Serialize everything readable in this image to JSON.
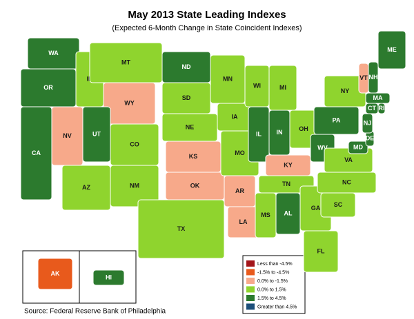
{
  "header": {
    "title": "May 2013 State Leading Indexes",
    "subtitle": "(Expected 6-Month Change in State Coincident Indexes)"
  },
  "legend": [
    {
      "label": "Less than -4.5%",
      "color": "#a3151a"
    },
    {
      "label": "-1.5% to -4.5%",
      "color": "#e85a1c"
    },
    {
      "label": "0.0% to -1.5%",
      "color": "#f7a98a"
    },
    {
      "label": "0.0% to  1.5%",
      "color": "#8fd42e"
    },
    {
      "label": "1.5% to  4.5%",
      "color": "#2c7a2e"
    },
    {
      "label": "Greater than 4.5%",
      "color": "#1d4f7a"
    }
  ],
  "states": [
    {
      "label": "WA",
      "class": 4
    },
    {
      "label": "OR",
      "class": 4
    },
    {
      "label": "CA",
      "class": 4
    },
    {
      "label": "NV",
      "class": 2
    },
    {
      "label": "ID",
      "class": 3
    },
    {
      "label": "MT",
      "class": 3
    },
    {
      "label": "WY",
      "class": 2
    },
    {
      "label": "UT",
      "class": 4
    },
    {
      "label": "CO",
      "class": 3
    },
    {
      "label": "AZ",
      "class": 3
    },
    {
      "label": "NM",
      "class": 3
    },
    {
      "label": "ND",
      "class": 4
    },
    {
      "label": "SD",
      "class": 3
    },
    {
      "label": "NE",
      "class": 3
    },
    {
      "label": "KS",
      "class": 2
    },
    {
      "label": "OK",
      "class": 2
    },
    {
      "label": "TX",
      "class": 3
    },
    {
      "label": "MN",
      "class": 3
    },
    {
      "label": "IA",
      "class": 3
    },
    {
      "label": "MO",
      "class": 3
    },
    {
      "label": "AR",
      "class": 2
    },
    {
      "label": "LA",
      "class": 2
    },
    {
      "label": "WI",
      "class": 3
    },
    {
      "label": "IL",
      "class": 4
    },
    {
      "label": "MI",
      "class": 3
    },
    {
      "label": "IN",
      "class": 4
    },
    {
      "label": "KY",
      "class": 2
    },
    {
      "label": "TN",
      "class": 3
    },
    {
      "label": "MS",
      "class": 3
    },
    {
      "label": "AL",
      "class": 4
    },
    {
      "label": "GA",
      "class": 3
    },
    {
      "label": "FL",
      "class": 3
    },
    {
      "label": "OH",
      "class": 3
    },
    {
      "label": "WV",
      "class": 4
    },
    {
      "label": "PA",
      "class": 4
    },
    {
      "label": "NY",
      "class": 3
    },
    {
      "label": "VA",
      "class": 3
    },
    {
      "label": "NC",
      "class": 3
    },
    {
      "label": "SC",
      "class": 3
    },
    {
      "label": "MD",
      "class": 4
    },
    {
      "label": "DE",
      "class": 4
    },
    {
      "label": "NJ",
      "class": 4
    },
    {
      "label": "CT",
      "class": 4
    },
    {
      "label": "RI",
      "class": 4
    },
    {
      "label": "MA",
      "class": 4
    },
    {
      "label": "VT",
      "class": 2
    },
    {
      "label": "NH",
      "class": 4
    },
    {
      "label": "ME",
      "class": 4
    },
    {
      "label": "AK",
      "class": 1
    },
    {
      "label": "HI",
      "class": 4
    }
  ],
  "source": "Source: Federal Reserve Bank of Philadelphia"
}
